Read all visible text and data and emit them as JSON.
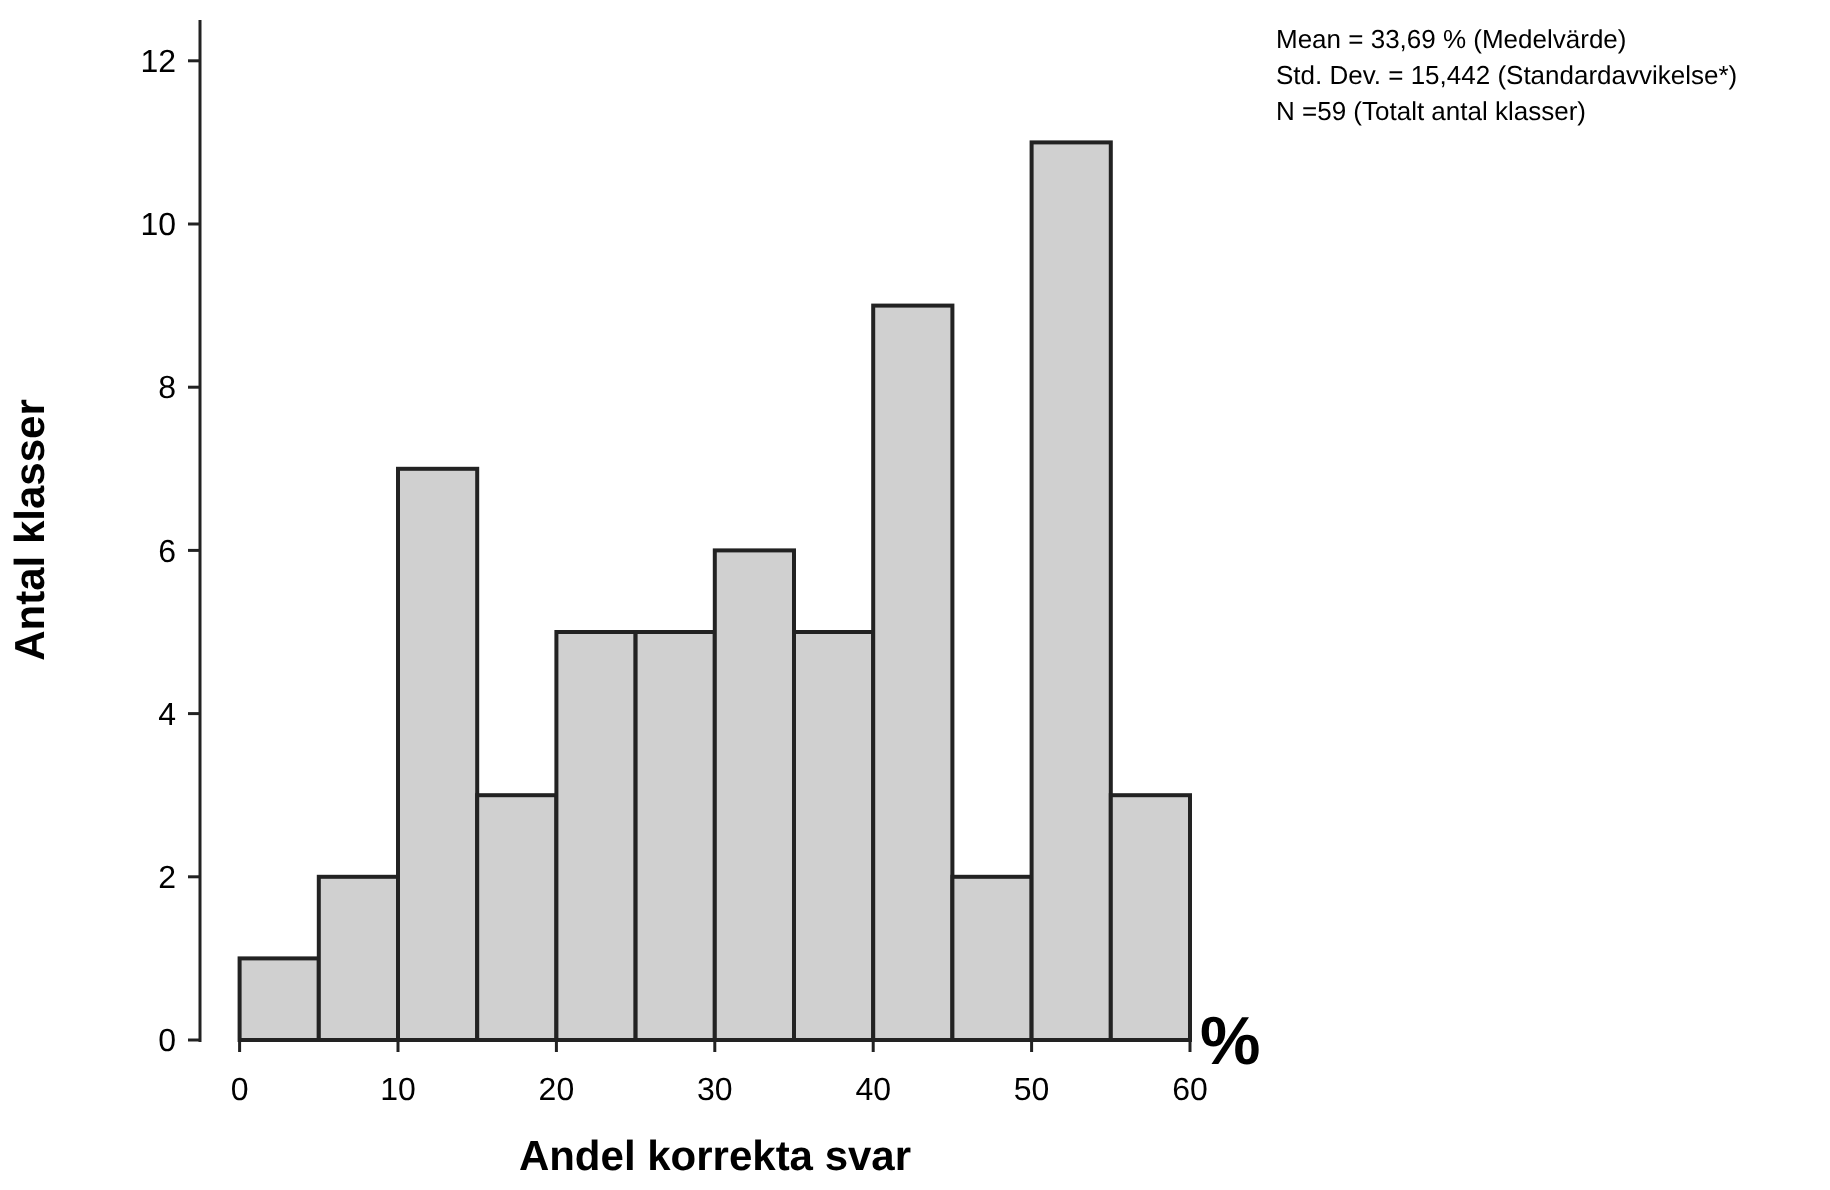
{
  "chart_data": {
    "type": "histogram",
    "xlabel": "Andel korrekta svar",
    "ylabel": "Antal klasser",
    "bins": [
      0,
      5,
      10,
      15,
      20,
      25,
      30,
      35,
      40,
      45,
      50,
      55,
      60
    ],
    "values": [
      1,
      2,
      7,
      3,
      5,
      5,
      6,
      5,
      9,
      2,
      11,
      3
    ],
    "color": "#d0d0d0",
    "xlim": [
      -2.5,
      60
    ],
    "ylim": [
      0,
      12.5
    ],
    "xticks": [
      0,
      10,
      20,
      30,
      40,
      50,
      60
    ],
    "yticks": [
      0,
      2,
      4,
      6,
      8,
      10,
      12
    ],
    "grid": false,
    "annotations": [
      "%",
      "Mean = 33,69 % (Medelvärde)",
      "Std. Dev. = 15,442 (Standardavvikelse*)",
      "N =59 (Totalt antal klasser)"
    ]
  }
}
